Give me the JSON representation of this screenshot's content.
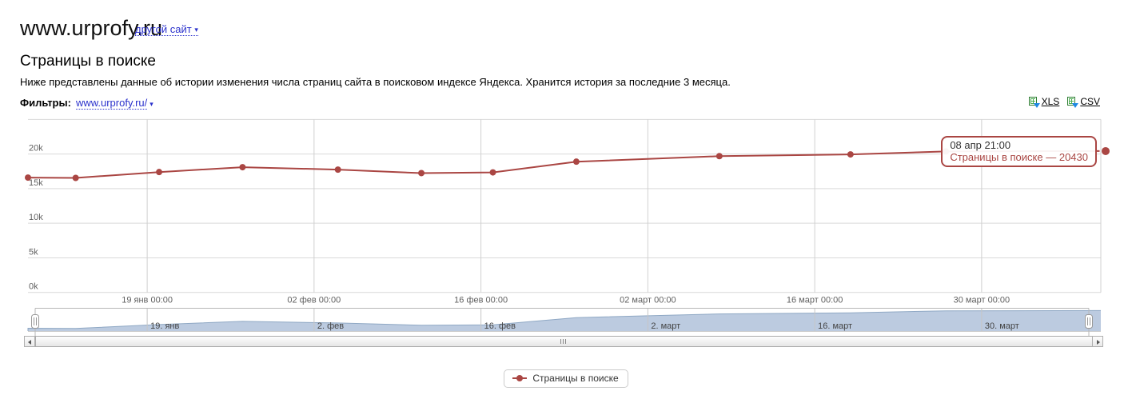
{
  "header": {
    "site_title": "www.urprofy.ru",
    "change_site_link": "другой сайт",
    "dropdown_arrow": "▾"
  },
  "page": {
    "title": "Страницы в поиске",
    "description": "Ниже представлены данные об истории изменения числа страниц сайта в поисковом индексе Яндекса. Хранится история за последние 3 месяца."
  },
  "filters": {
    "label": "Фильтры:",
    "selected_site": "www.urprofy.ru/",
    "dropdown_arrow": "▾"
  },
  "export": {
    "xls": "XLS",
    "csv": "CSV"
  },
  "icons": {
    "xls_icon": "excel-doc-with-download-arrow",
    "csv_icon": "excel-doc-with-download-arrow",
    "scrollbar_left": "left-arrow",
    "scrollbar_right": "right-arrow",
    "scrollbar_grip": "three-vertical-bars",
    "navigator_handle": "grab-handle"
  },
  "tooltip": {
    "date": "08 апр 21:00",
    "series_name": "Страницы в поиске",
    "dash": "—",
    "value": "20430"
  },
  "legend": {
    "label": "Страницы в поиске"
  },
  "colors": {
    "series": "#AA4643",
    "grid_h": "#d9d9d9",
    "grid_v": "#d0d0d0",
    "axis_label": "#606060",
    "nav_label": "#444444",
    "nav_fill": "#bccbe0",
    "nav_line": "#8fa8c4",
    "nav_outline": "#b7b7b7",
    "link_blue": "#2b32cc"
  },
  "chart_data": {
    "type": "line",
    "title": "Страницы в поиске",
    "xlabel": "",
    "ylabel": "",
    "grid": true,
    "legend_position": "bottom-center",
    "ylim": [
      0,
      25000
    ],
    "xlim_days": [
      0,
      90
    ],
    "y_ticks": [
      {
        "value": 0,
        "label": "0k"
      },
      {
        "value": 5000,
        "label": "5k"
      },
      {
        "value": 10000,
        "label": "10k"
      },
      {
        "value": 15000,
        "label": "15k"
      },
      {
        "value": 20000,
        "label": "20k"
      },
      {
        "value": 25000,
        "label": ""
      }
    ],
    "x_ticks": [
      {
        "day": 10,
        "label": "19 янв 00:00",
        "nav_label": "19. янв"
      },
      {
        "day": 24,
        "label": "02 фев 00:00",
        "nav_label": "2. фев"
      },
      {
        "day": 38,
        "label": "16 фев 00:00",
        "nav_label": "16. фев"
      },
      {
        "day": 52,
        "label": "02 март 00:00",
        "nav_label": "2. март"
      },
      {
        "day": 66,
        "label": "16 март 00:00",
        "nav_label": "16. март"
      },
      {
        "day": 80,
        "label": "30 март 00:00",
        "nav_label": "30. март"
      }
    ],
    "series": [
      {
        "name": "Страницы в поиске",
        "color": "#AA4643",
        "points": [
          {
            "date": "09 янв",
            "day": 0,
            "value": 16600
          },
          {
            "date": "13 янв",
            "day": 4,
            "value": 16550
          },
          {
            "date": "20 янв",
            "day": 11,
            "value": 17400
          },
          {
            "date": "27 янв",
            "day": 18,
            "value": 18100
          },
          {
            "date": "04 фев",
            "day": 26,
            "value": 17750
          },
          {
            "date": "11 фев",
            "day": 33,
            "value": 17250
          },
          {
            "date": "17 фев",
            "day": 39,
            "value": 17350
          },
          {
            "date": "24 фев",
            "day": 46,
            "value": 18900
          },
          {
            "date": "08 март",
            "day": 58,
            "value": 19700
          },
          {
            "date": "19 март",
            "day": 69,
            "value": 19950
          },
          {
            "date": "27 март",
            "day": 77,
            "value": 20380
          },
          {
            "date": "08 апр 21:00",
            "day": 89.9,
            "value": 20430
          }
        ]
      }
    ],
    "navigator": {
      "vmin": 16000,
      "vmax": 20500
    }
  }
}
